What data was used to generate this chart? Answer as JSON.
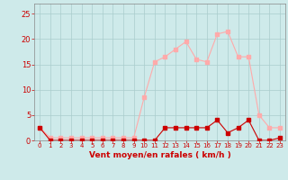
{
  "hours": [
    0,
    1,
    2,
    3,
    4,
    5,
    6,
    7,
    8,
    9,
    10,
    11,
    12,
    13,
    14,
    15,
    16,
    17,
    18,
    19,
    20,
    21,
    22,
    23
  ],
  "wind_avg": [
    2.5,
    0,
    0,
    0,
    0,
    0,
    0,
    0,
    0,
    0,
    0,
    0,
    2.5,
    2.5,
    2.5,
    2.5,
    2.5,
    4,
    1.5,
    2.5,
    4,
    0,
    0,
    0.5
  ],
  "wind_gust": [
    2.5,
    0.5,
    0.5,
    0.5,
    0.5,
    0.5,
    0.5,
    0.5,
    0.5,
    0.5,
    8.5,
    15.5,
    16.5,
    18,
    19.5,
    16,
    15.5,
    21,
    21.5,
    16.5,
    16.5,
    5,
    2.5,
    2.5
  ],
  "color_avg": "#cc0000",
  "color_gust": "#ffaaaa",
  "bg_color": "#ceeaea",
  "grid_color": "#aacccc",
  "xlabel": "Vent moyen/en rafales ( km/h )",
  "xlabel_color": "#cc0000",
  "tick_color": "#cc0000",
  "ylim": [
    0,
    27
  ],
  "yticks": [
    0,
    5,
    10,
    15,
    20,
    25
  ],
  "xlim": [
    -0.5,
    23.5
  ],
  "marker_size": 2.5
}
